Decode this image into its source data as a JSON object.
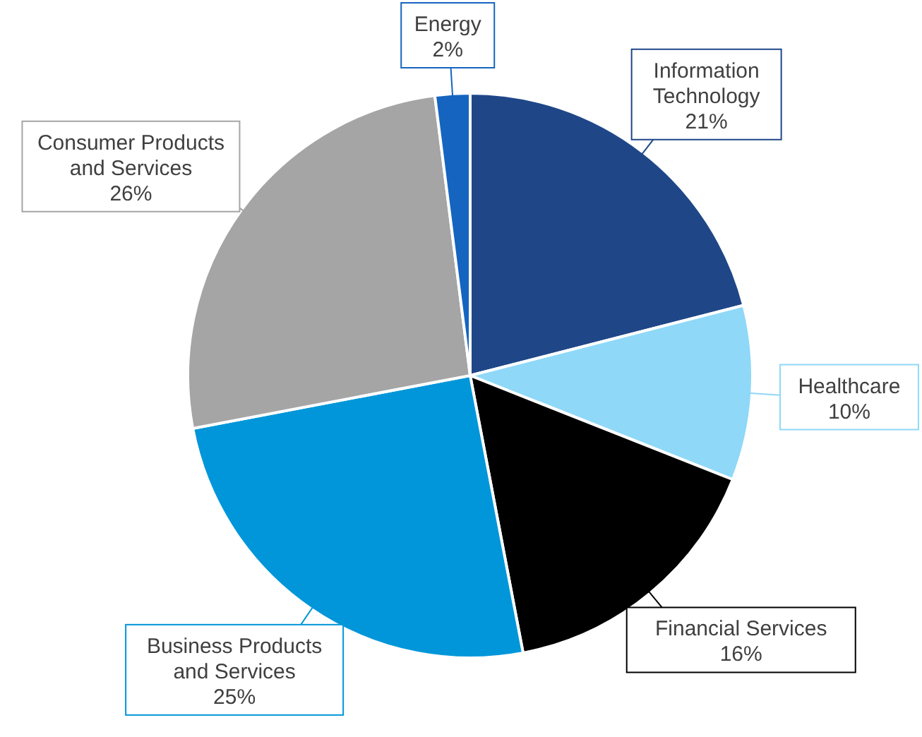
{
  "chart_data": {
    "type": "pie",
    "categories": [
      "Information Technology",
      "Healthcare",
      "Financial Services",
      "Business Products and Services",
      "Consumer Products and Services",
      "Energy"
    ],
    "values": [
      21,
      10,
      16,
      25,
      26,
      2
    ],
    "colors": [
      "#1f4788",
      "#8fd8f8",
      "#000000",
      "#0096d9",
      "#a5a5a5",
      "#1565c0"
    ],
    "value_labels": [
      "21%",
      "10%",
      "16%",
      "25%",
      "26%",
      "2%"
    ]
  }
}
